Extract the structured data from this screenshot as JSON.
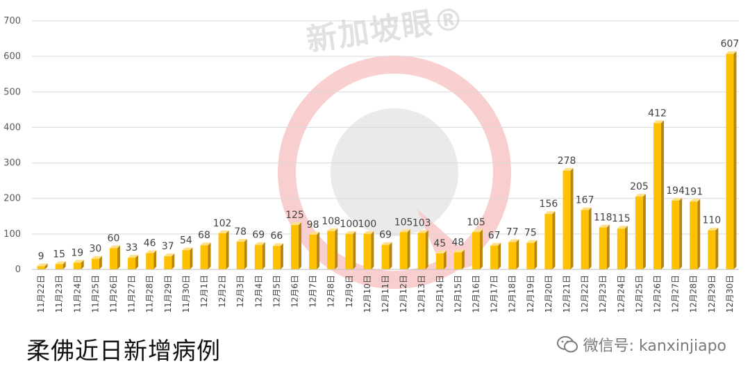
{
  "chart_data": {
    "type": "bar",
    "title": "柔佛近日新增病例",
    "xlabel": "",
    "ylabel": "",
    "ylim": [
      0,
      700
    ],
    "yticks": [
      0,
      100,
      200,
      300,
      400,
      500,
      600,
      700
    ],
    "grid": true,
    "legend": "none",
    "categories": [
      "11月22日",
      "11月23日",
      "11月24日",
      "11月25日",
      "11月26日",
      "11月27日",
      "11月28日",
      "11月29日",
      "11月30日",
      "12月1日",
      "12月2日",
      "12月3日",
      "12月4日",
      "12月5日",
      "12月6日",
      "12月7日",
      "12月8日",
      "12月9日",
      "12月10日",
      "12月11日",
      "12月12日",
      "12月13日",
      "12月14日",
      "12月15日",
      "12月16日",
      "12月17日",
      "12月18日",
      "12月19日",
      "12月20日",
      "12月21日",
      "12月22日",
      "12月23日",
      "12月24日",
      "12月25日",
      "12月26日",
      "12月27日",
      "12月28日",
      "12月29日",
      "12月30日"
    ],
    "values": [
      9,
      15,
      19,
      30,
      60,
      33,
      46,
      37,
      54,
      68,
      102,
      78,
      69,
      66,
      125,
      98,
      108,
      100,
      100,
      69,
      105,
      103,
      45,
      48,
      105,
      67,
      77,
      75,
      156,
      278,
      167,
      118,
      115,
      205,
      412,
      194,
      191,
      110,
      607
    ],
    "bar_color": "#FFC000",
    "bar_side_color": "#B8860B",
    "bar_top_color": "#FFE08A"
  },
  "watermark": {
    "text": "新加坡眼®"
  },
  "source": {
    "text": "微信号: kanxinjiapo",
    "icon": "wechat-icon"
  }
}
